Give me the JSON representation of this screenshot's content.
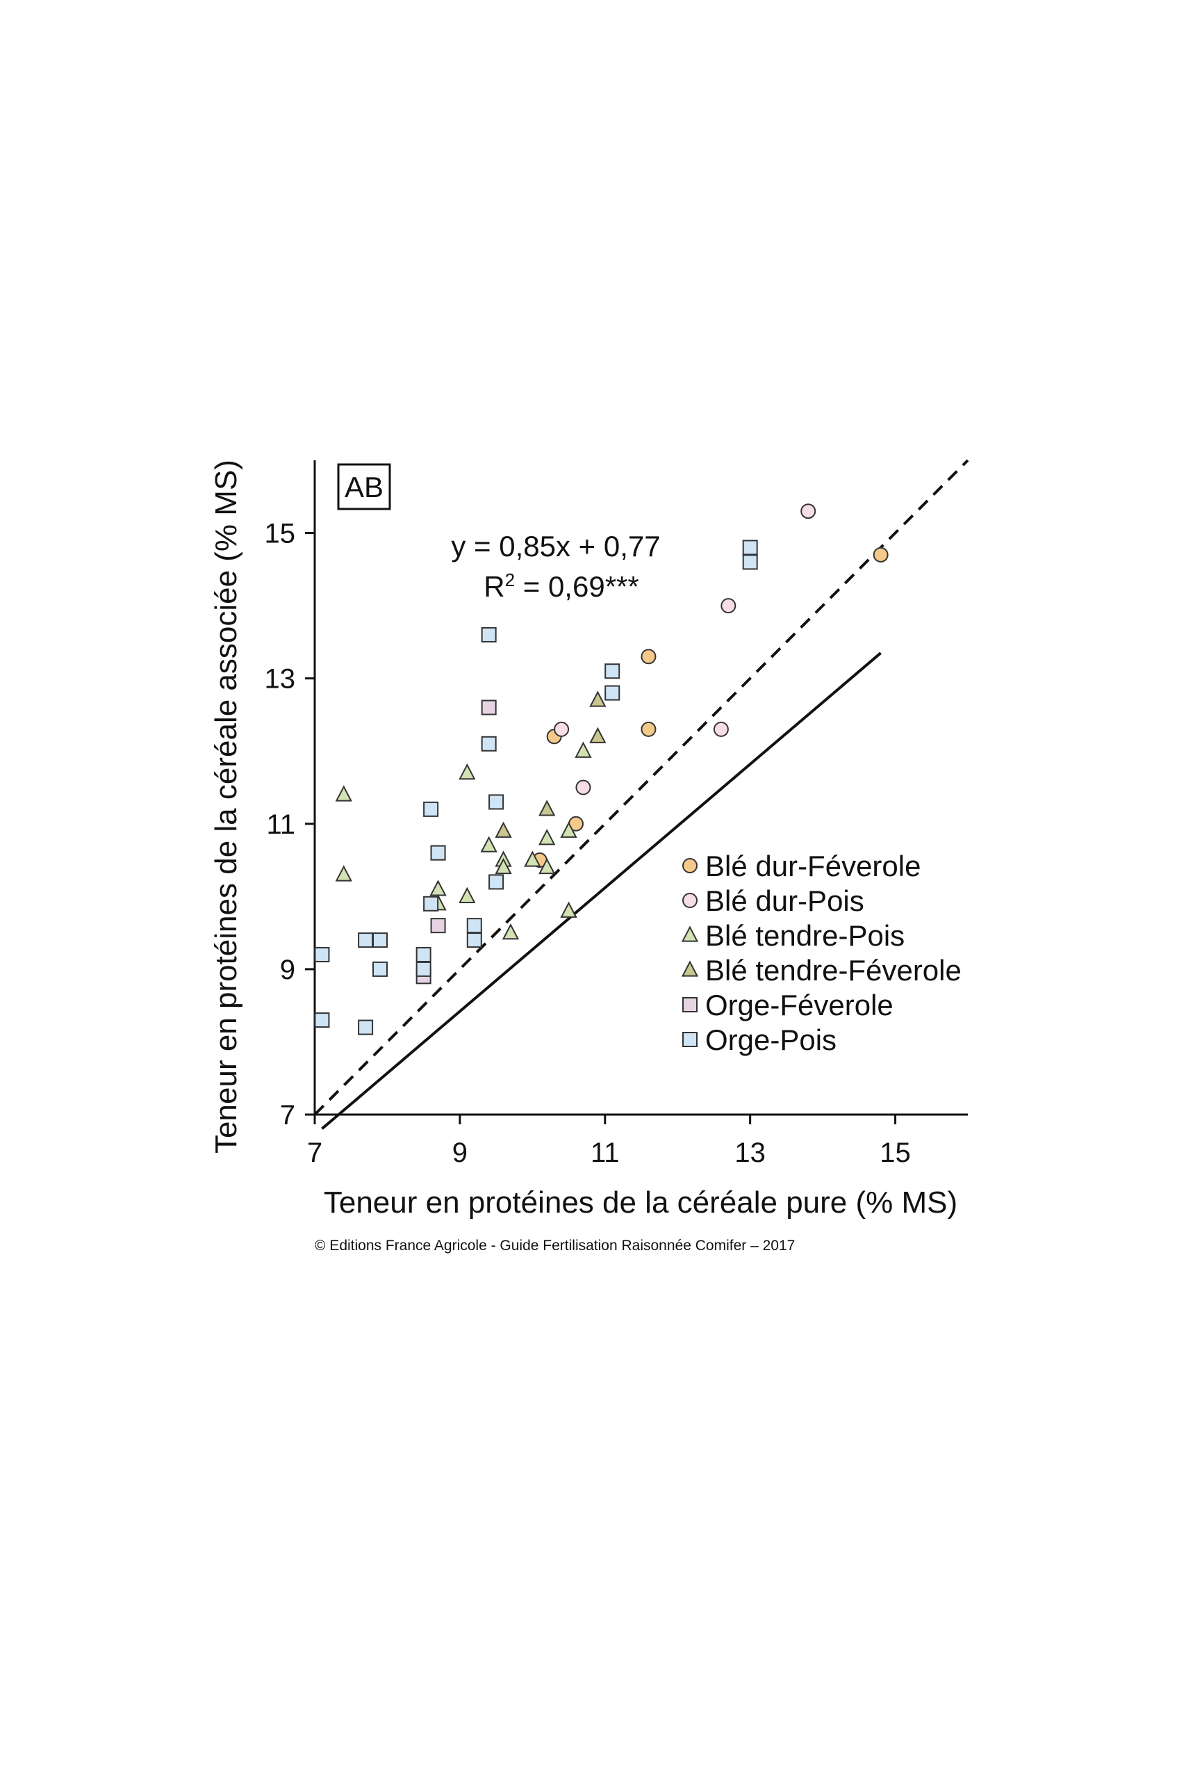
{
  "chart_data": {
    "type": "scatter",
    "panel_label": "AB",
    "xlabel": "Teneur en protéines de la céréale pure (% MS)",
    "ylabel": "Teneur en protéines de la céréale associée (% MS)",
    "xlim": [
      7,
      16
    ],
    "ylim": [
      7,
      16
    ],
    "x_ticks": [
      7,
      9,
      11,
      13,
      15
    ],
    "y_ticks": [
      7,
      9,
      11,
      13,
      15
    ],
    "grid": false,
    "legend_position": "bottom-right",
    "equation": {
      "line1": "y = 0,85x + 0,77",
      "r2_prefix": "R",
      "r2_exp": "2",
      "r2_suffix": " = 0,69***"
    },
    "regression": {
      "slope": 0.85,
      "intercept": 0.77,
      "x_range": [
        7.1,
        14.8
      ],
      "style": "solid"
    },
    "identity_line": {
      "style": "dashed",
      "x_range": [
        7,
        16
      ]
    },
    "series": [
      {
        "name": "Blé dur-Féverole",
        "marker": "circle",
        "color": "#f5c98a",
        "points": [
          [
            10.3,
            12.2
          ],
          [
            11.6,
            13.3
          ],
          [
            11.6,
            12.3
          ],
          [
            10.6,
            11.0
          ],
          [
            10.1,
            10.5
          ],
          [
            14.8,
            14.7
          ]
        ]
      },
      {
        "name": "Blé dur-Pois",
        "marker": "circle",
        "color": "#f6dde8",
        "points": [
          [
            13.8,
            15.3
          ],
          [
            12.7,
            14.0
          ],
          [
            12.6,
            12.3
          ],
          [
            10.4,
            12.3
          ],
          [
            10.7,
            11.5
          ]
        ]
      },
      {
        "name": "Blé tendre-Pois",
        "marker": "triangle",
        "color": "#d3e2b2",
        "points": [
          [
            7.4,
            11.4
          ],
          [
            7.4,
            10.3
          ],
          [
            9.1,
            11.7
          ],
          [
            9.4,
            10.7
          ],
          [
            9.6,
            10.5
          ],
          [
            9.6,
            10.4
          ],
          [
            8.7,
            10.1
          ],
          [
            8.7,
            9.9
          ],
          [
            9.1,
            10.0
          ],
          [
            9.7,
            9.5
          ],
          [
            10.0,
            10.5
          ],
          [
            10.2,
            10.4
          ],
          [
            10.2,
            10.8
          ],
          [
            10.5,
            10.9
          ],
          [
            10.7,
            12.0
          ],
          [
            10.5,
            9.8
          ]
        ]
      },
      {
        "name": "Blé tendre-Féverole",
        "marker": "triangle",
        "color": "#c9c68f",
        "points": [
          [
            10.9,
            12.7
          ],
          [
            10.9,
            12.2
          ],
          [
            10.2,
            11.2
          ],
          [
            9.6,
            10.9
          ]
        ]
      },
      {
        "name": "Orge-Féverole",
        "marker": "square",
        "color": "#e6d3e3",
        "points": [
          [
            9.4,
            12.6
          ],
          [
            8.7,
            9.6
          ],
          [
            8.5,
            8.9
          ]
        ]
      },
      {
        "name": "Orge-Pois",
        "marker": "square",
        "color": "#cfe4f5",
        "points": [
          [
            9.4,
            13.6
          ],
          [
            9.4,
            12.1
          ],
          [
            13.0,
            14.8
          ],
          [
            13.0,
            14.6
          ],
          [
            11.1,
            13.1
          ],
          [
            11.1,
            12.8
          ],
          [
            9.5,
            11.3
          ],
          [
            8.6,
            11.2
          ],
          [
            8.7,
            10.6
          ],
          [
            8.7,
            10.6
          ],
          [
            9.5,
            10.2
          ],
          [
            8.6,
            9.9
          ],
          [
            9.2,
            9.6
          ],
          [
            9.2,
            9.4
          ],
          [
            7.1,
            9.2
          ],
          [
            7.7,
            9.4
          ],
          [
            7.9,
            9.4
          ],
          [
            8.5,
            9.2
          ],
          [
            8.5,
            9.0
          ],
          [
            7.9,
            9.0
          ],
          [
            7.1,
            8.3
          ],
          [
            7.7,
            8.2
          ]
        ]
      }
    ]
  },
  "credit": "© Editions France Agricole - Guide Fertilisation Raisonnée Comifer – 2017"
}
